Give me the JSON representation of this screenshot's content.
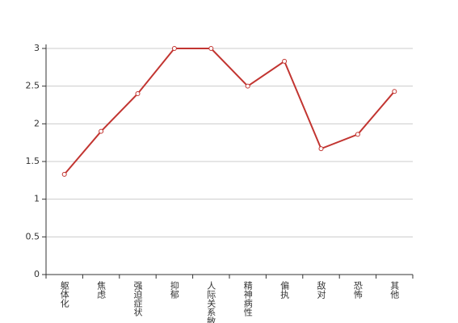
{
  "chart_data": {
    "type": "line",
    "categories": [
      "躯体化",
      "焦虑",
      "强迫症状",
      "抑郁",
      "人际关系敏感",
      "精神病性",
      "偏执",
      "敌对",
      "恐怖",
      "其他"
    ],
    "series": [
      {
        "color": "#c23531",
        "values": [
          1.33,
          1.9,
          2.4,
          3.0,
          3.0,
          2.5,
          2.83,
          1.67,
          1.86,
          2.43
        ]
      }
    ],
    "ylim": [
      0,
      3
    ],
    "yticks": [
      0,
      0.5,
      1,
      1.5,
      2,
      2.5,
      3
    ],
    "grid": true
  }
}
